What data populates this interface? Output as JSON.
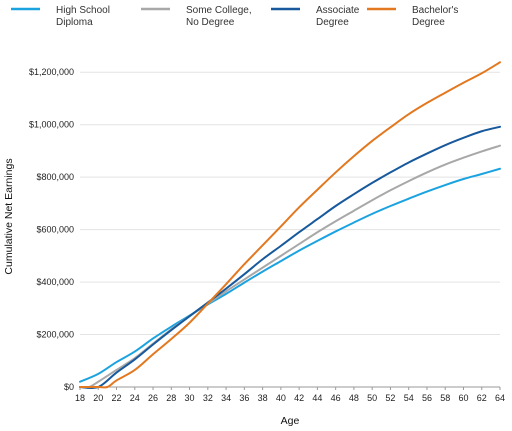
{
  "chart_data": {
    "type": "line",
    "xlabel": "Age",
    "ylabel": "Cumulative Net Earnings",
    "xlim": [
      18,
      64
    ],
    "ylim": [
      0,
      1300000
    ],
    "x_ticks": [
      "18",
      "20",
      "22",
      "24",
      "26",
      "28",
      "30",
      "32",
      "34",
      "36",
      "38",
      "40",
      "42",
      "44",
      "46",
      "48",
      "50",
      "52",
      "54",
      "56",
      "58",
      "60",
      "62",
      "64"
    ],
    "y_ticks": [
      {
        "value": 0,
        "label": "$0"
      },
      {
        "value": 200000,
        "label": "$200,000"
      },
      {
        "value": 400000,
        "label": "$400,000"
      },
      {
        "value": 600000,
        "label": "$600,000"
      },
      {
        "value": 800000,
        "label": "$800,000"
      },
      {
        "value": 1000000,
        "label": "$1,000,000"
      },
      {
        "value": 1200000,
        "label": "$1,200,000"
      }
    ],
    "grid": "horizontal",
    "legend_position": "top",
    "series": [
      {
        "name": "High School Diploma",
        "legend_lines": [
          "High School",
          "Diploma"
        ],
        "color": "#1ba3e0",
        "points": [
          [
            18,
            20000
          ],
          [
            20,
            50000
          ],
          [
            22,
            95000
          ],
          [
            24,
            135000
          ],
          [
            26,
            185000
          ],
          [
            28,
            230000
          ],
          [
            30,
            272000
          ],
          [
            32,
            315000
          ],
          [
            34,
            355000
          ],
          [
            36,
            398000
          ],
          [
            38,
            440000
          ],
          [
            40,
            480000
          ],
          [
            42,
            520000
          ],
          [
            44,
            557000
          ],
          [
            46,
            593000
          ],
          [
            48,
            627000
          ],
          [
            50,
            660000
          ],
          [
            52,
            690000
          ],
          [
            54,
            718000
          ],
          [
            56,
            745000
          ],
          [
            58,
            770000
          ],
          [
            60,
            793000
          ],
          [
            62,
            812000
          ],
          [
            64,
            832000
          ]
        ]
      },
      {
        "name": "Some College, No Degree",
        "legend_lines": [
          "Some College,",
          "No Degree"
        ],
        "color": "#a8a8a8",
        "points": [
          [
            18,
            0
          ],
          [
            19,
            0
          ],
          [
            20,
            20000
          ],
          [
            22,
            65000
          ],
          [
            24,
            110000
          ],
          [
            26,
            165000
          ],
          [
            28,
            220000
          ],
          [
            30,
            270000
          ],
          [
            32,
            318000
          ],
          [
            34,
            365000
          ],
          [
            36,
            410000
          ],
          [
            38,
            455000
          ],
          [
            40,
            500000
          ],
          [
            42,
            545000
          ],
          [
            44,
            590000
          ],
          [
            46,
            632000
          ],
          [
            48,
            672000
          ],
          [
            50,
            712000
          ],
          [
            52,
            750000
          ],
          [
            54,
            785000
          ],
          [
            56,
            818000
          ],
          [
            58,
            848000
          ],
          [
            60,
            874000
          ],
          [
            62,
            898000
          ],
          [
            64,
            920000
          ]
        ]
      },
      {
        "name": "Associate Degree",
        "legend_lines": [
          "Associate",
          "Degree"
        ],
        "color": "#17599c",
        "points": [
          [
            18,
            0
          ],
          [
            20,
            0
          ],
          [
            22,
            55000
          ],
          [
            24,
            105000
          ],
          [
            26,
            162000
          ],
          [
            28,
            217000
          ],
          [
            30,
            270000
          ],
          [
            32,
            322000
          ],
          [
            34,
            375000
          ],
          [
            36,
            430000
          ],
          [
            38,
            487000
          ],
          [
            40,
            538000
          ],
          [
            42,
            590000
          ],
          [
            44,
            640000
          ],
          [
            46,
            690000
          ],
          [
            48,
            735000
          ],
          [
            50,
            778000
          ],
          [
            52,
            818000
          ],
          [
            54,
            856000
          ],
          [
            56,
            890000
          ],
          [
            58,
            922000
          ],
          [
            60,
            950000
          ],
          [
            62,
            975000
          ],
          [
            64,
            992000
          ]
        ]
      },
      {
        "name": "Bachelor's Degree",
        "legend_lines": [
          "Bachelor's",
          "Degree"
        ],
        "color": "#e27820",
        "points": [
          [
            18,
            0
          ],
          [
            20,
            0
          ],
          [
            21,
            0
          ],
          [
            22,
            25000
          ],
          [
            24,
            65000
          ],
          [
            26,
            125000
          ],
          [
            28,
            183000
          ],
          [
            30,
            245000
          ],
          [
            32,
            318000
          ],
          [
            34,
            392000
          ],
          [
            36,
            468000
          ],
          [
            38,
            540000
          ],
          [
            40,
            612000
          ],
          [
            42,
            685000
          ],
          [
            44,
            752000
          ],
          [
            46,
            818000
          ],
          [
            48,
            880000
          ],
          [
            50,
            938000
          ],
          [
            52,
            990000
          ],
          [
            54,
            1040000
          ],
          [
            56,
            1083000
          ],
          [
            58,
            1122000
          ],
          [
            60,
            1160000
          ],
          [
            62,
            1196000
          ],
          [
            64,
            1238000
          ]
        ]
      }
    ]
  }
}
